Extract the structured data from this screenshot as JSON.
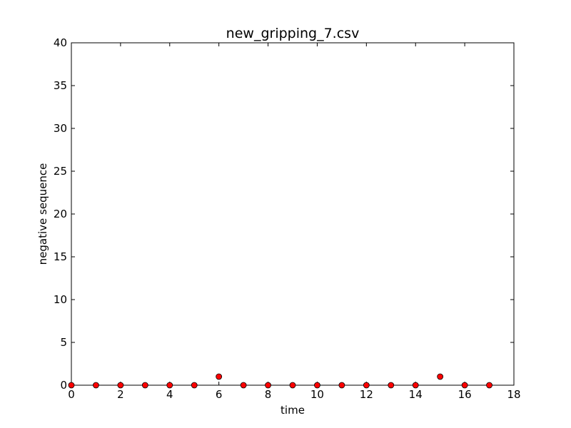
{
  "chart_data": {
    "type": "scatter",
    "title": "new_gripping_7.csv",
    "xlabel": "time",
    "ylabel": "negative sequence",
    "xlim": [
      0,
      18
    ],
    "ylim": [
      0,
      40
    ],
    "xticks": [
      0,
      2,
      4,
      6,
      8,
      10,
      12,
      14,
      16,
      18
    ],
    "yticks": [
      0,
      5,
      10,
      15,
      20,
      25,
      30,
      35,
      40
    ],
    "grid": false,
    "marker_color": "#ff0000",
    "marker_edge_color": "#000000",
    "series": [
      {
        "x": [
          0,
          1,
          2,
          3,
          4,
          5,
          6,
          7,
          8,
          9,
          10,
          11,
          12,
          13,
          14,
          15,
          16,
          17
        ],
        "y": [
          0,
          0,
          0,
          0,
          0,
          0,
          1,
          0,
          0,
          0,
          0,
          0,
          0,
          0,
          0,
          1,
          0,
          0
        ]
      }
    ]
  }
}
